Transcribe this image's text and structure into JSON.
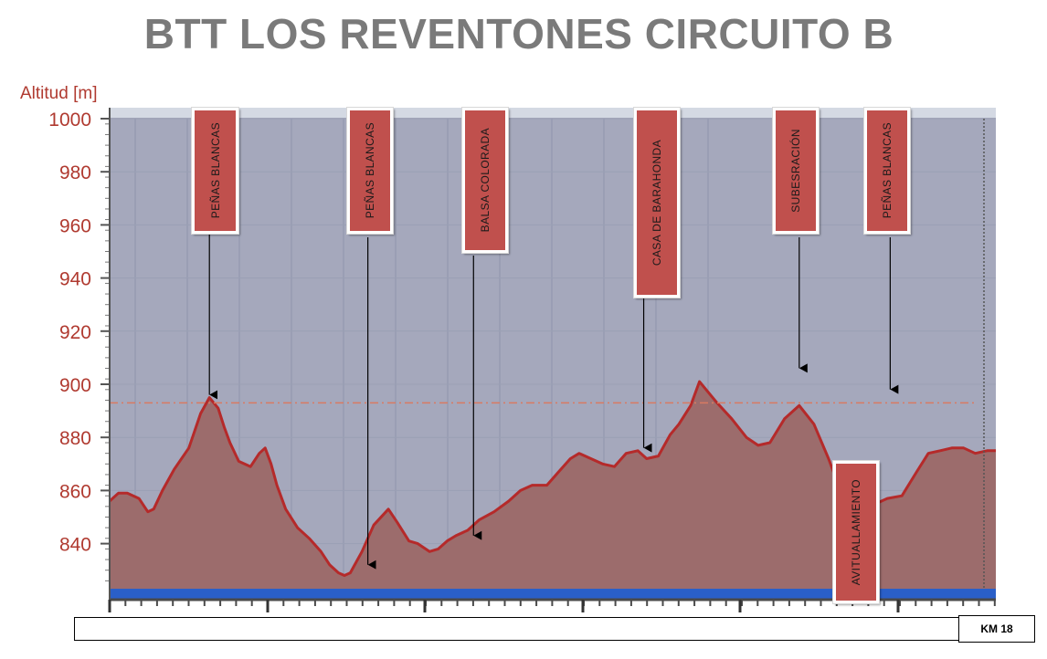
{
  "title": "BTT LOS REVENTONES CIRCUITO B",
  "chart_data": {
    "type": "area",
    "title": "BTT LOS REVENTONES CIRCUITO B",
    "ylabel": "Altitud [m]",
    "xlabel": "",
    "ylim": [
      822,
      1004
    ],
    "yticks": [
      840,
      860,
      880,
      900,
      920,
      940,
      960,
      980,
      1000
    ],
    "reference_line": 893,
    "grid": true,
    "colors": {
      "fill": "#9c6c6c",
      "line": "#b52a2a",
      "plot_bg": "#a5a8bc",
      "base_band": "#2a5fc8"
    },
    "series": [
      {
        "x": [
          0,
          0.15,
          0.3,
          0.5,
          0.65,
          0.75,
          0.9,
          1.1,
          1.35,
          1.55,
          1.7,
          1.85,
          1.95,
          2.05,
          2.2,
          2.4,
          2.55,
          2.65,
          2.75,
          2.85,
          3.0,
          3.2,
          3.4,
          3.6,
          3.75,
          3.9,
          4.0,
          4.1,
          4.3,
          4.5,
          4.75,
          4.9,
          5.1,
          5.25,
          5.45,
          5.6,
          5.75,
          5.9,
          6.1,
          6.3,
          6.55,
          6.8,
          7.0,
          7.2,
          7.45,
          7.65,
          7.85,
          8.0,
          8.2,
          8.4,
          8.6,
          8.8,
          9.0,
          9.15,
          9.35,
          9.55,
          9.7,
          9.9,
          10.05,
          10.2,
          10.35,
          10.6,
          10.85,
          11.05,
          11.25,
          11.5,
          11.75,
          12.0,
          12.25,
          12.4,
          12.6,
          12.85,
          13.05,
          13.25,
          13.5,
          13.75,
          13.95,
          14.15,
          14.35,
          14.55,
          14.75,
          14.95,
          15.1
        ],
        "values": [
          856,
          859,
          859,
          857,
          852,
          853,
          860,
          868,
          876,
          889,
          895,
          891,
          884,
          878,
          871,
          869,
          874,
          876,
          870,
          862,
          853,
          846,
          842,
          837,
          832,
          829,
          828,
          829,
          837,
          847,
          853,
          848,
          841,
          840,
          837,
          838,
          841,
          843,
          845,
          849,
          852,
          856,
          860,
          862,
          862,
          867,
          872,
          874,
          872,
          870,
          869,
          874,
          875,
          872,
          873,
          881,
          885,
          892,
          901,
          897,
          893,
          887,
          880,
          877,
          878,
          887,
          892,
          885,
          872,
          863,
          857,
          853,
          855,
          857,
          858,
          867,
          874,
          875,
          876,
          876,
          874,
          875,
          875
        ]
      }
    ],
    "annotations": [
      {
        "label": "PEÑAS BLANCAS",
        "x": 1.7,
        "y": 894
      },
      {
        "label": "PEÑAS BLANCAS",
        "x": 4.4,
        "y": 830
      },
      {
        "label": "BALSA COLORADA",
        "x": 6.2,
        "y": 841
      },
      {
        "label": "CASA DE BARAHONDA",
        "x": 9.1,
        "y": 874
      },
      {
        "label": "SUBESRACIÓN",
        "x": 11.75,
        "y": 904
      },
      {
        "label": "PEÑAS BLANCAS",
        "x": 13.3,
        "y": 896
      },
      {
        "label": "AVITUALLAMIENTO"
      }
    ],
    "x_axis_note": "KM 18"
  }
}
